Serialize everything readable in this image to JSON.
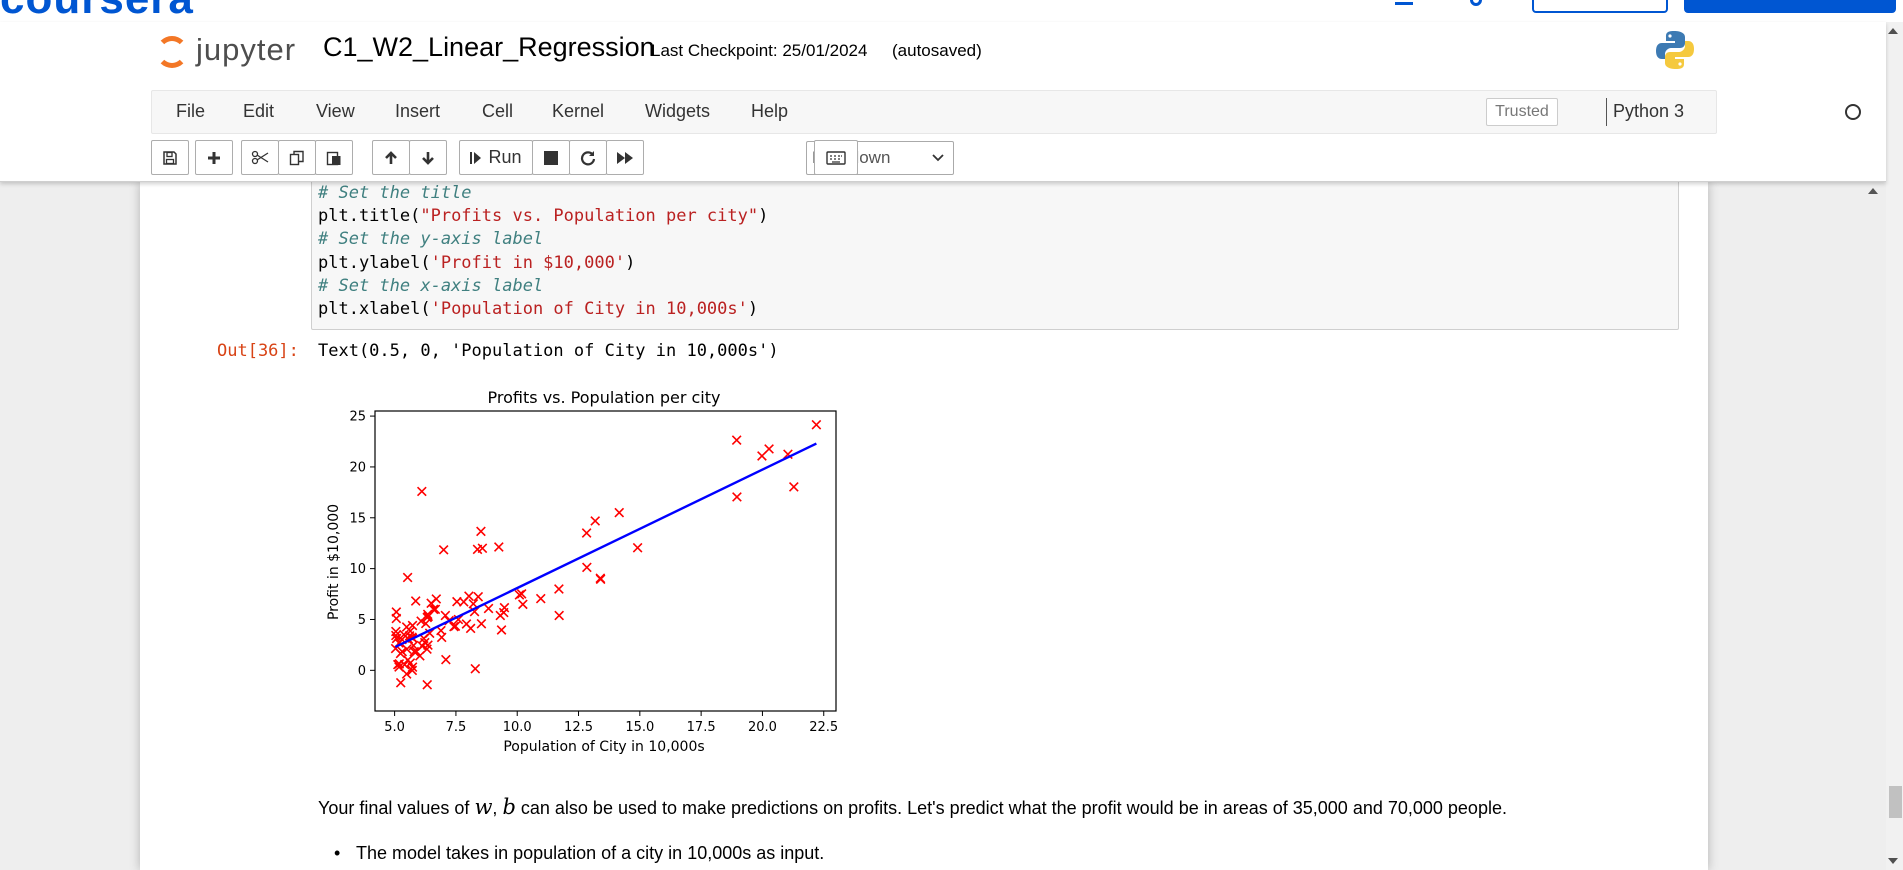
{
  "header": {
    "brand_text": "coursera",
    "logo_text": "jupyter",
    "notebook_title": "C1_W2_Linear_Regression",
    "checkpoint": "Last Checkpoint: 25/01/2024",
    "autosave_status": "(autosaved)"
  },
  "menu": [
    "File",
    "Edit",
    "View",
    "Insert",
    "Cell",
    "Kernel",
    "Widgets",
    "Help"
  ],
  "status": {
    "trusted": "Trusted",
    "kernel": "Python 3"
  },
  "toolbar": {
    "icons": [
      "save-icon",
      "plus-icon",
      "cut-icon",
      "copy-icon",
      "paste-icon",
      "arrow-up-icon",
      "arrow-down-icon",
      "run-icon",
      "stop-icon",
      "restart-icon",
      "fast-forward-icon",
      "keyboard-icon"
    ],
    "run_label": "Run",
    "cell_type": "Markdown"
  },
  "code_cell": {
    "lines": [
      "# Set the title",
      "plt.title(",
      "\"Profits vs. Population per city\"",
      ")",
      "# Set the y-axis label",
      "plt.ylabel(",
      "'Profit in $10,000'",
      ")",
      "# Set the x-axis label",
      "plt.xlabel(",
      "'Population of City in 10,000s'",
      ")"
    ]
  },
  "output": {
    "prompt": "Out[36]:",
    "text": "Text(0.5, 0, 'Population of City in 10,000s')"
  },
  "chart_data": {
    "type": "scatter",
    "title": "Profits vs. Population per city",
    "xlabel": "Population of City in 10,000s",
    "ylabel": "Profit in $10,000",
    "xlim": [
      4.2,
      23.0
    ],
    "ylim": [
      -4.0,
      25.5
    ],
    "xticks": [
      "5.0",
      "7.5",
      "10.0",
      "12.5",
      "15.0",
      "17.5",
      "20.0",
      "22.5"
    ],
    "yticks": [
      "0",
      "5",
      "10",
      "15",
      "20",
      "25"
    ],
    "grid": false,
    "colors": {
      "points": "#ff0000",
      "fit_line": "#0000ff"
    },
    "series": [
      {
        "kind": "scatter-x-marker",
        "x": [
          6.11,
          5.53,
          8.52,
          7.0,
          5.86,
          8.38,
          7.48,
          8.58,
          6.49,
          5.05,
          5.71,
          14.16,
          5.73,
          8.41,
          5.64,
          5.38,
          6.37,
          5.13,
          6.43,
          7.07,
          6.19,
          20.27,
          5.49,
          6.33,
          5.56,
          18.95,
          12.83,
          10.96,
          13.18,
          22.2,
          5.25,
          6.59,
          9.25,
          5.89,
          8.21,
          7.93,
          8.1,
          5.61,
          12.84,
          6.35,
          5.41,
          6.89,
          11.71,
          5.77,
          7.82,
          7.09,
          5.07,
          5.8,
          11.7,
          5.54,
          7.54,
          5.31,
          7.42,
          7.6,
          6.03,
          6.33,
          6.36,
          6.27,
          5.64,
          9.31,
          9.45,
          8.83,
          5.18,
          21.28,
          14.91,
          18.96,
          7.22,
          5.07,
          5.3,
          8.29,
          5.73,
          5.19,
          6.92,
          5.24,
          13.39,
          5.05,
          8.03,
          5.04,
          19.98,
          21.04,
          8.26,
          6.23,
          6.7,
          9.48,
          10.23,
          10.18,
          5.5,
          5.08,
          10.09,
          5.49,
          13.4,
          6.13,
          5.72,
          6.32,
          8.54,
          5.18,
          6.66,
          5.73,
          9.36,
          6.08
        ],
        "y": [
          17.59,
          9.13,
          13.66,
          11.85,
          6.82,
          11.89,
          4.35,
          12.0,
          6.6,
          3.82,
          3.25,
          15.51,
          3.16,
          7.23,
          0.72,
          3.51,
          5.3,
          0.56,
          3.65,
          5.39,
          3.14,
          21.77,
          4.26,
          5.19,
          3.08,
          22.64,
          13.5,
          7.05,
          14.69,
          24.15,
          -1.22,
          5.99,
          12.13,
          1.85,
          6.54,
          4.56,
          4.12,
          3.39,
          10.12,
          5.5,
          0.56,
          3.91,
          5.39,
          2.44,
          6.73,
          1.05,
          5.1,
          1.84,
          8.0,
          1.02,
          6.75,
          1.84,
          4.29,
          5.0,
          1.42,
          -1.42,
          2.48,
          4.6,
          3.86,
          5.39,
          5.68,
          6.08,
          2.68,
          18.04,
          12.05,
          17.05,
          4.89,
          5.74,
          3.03,
          0.15,
          0.31,
          0.63,
          3.24,
          1.65,
          9.05,
          3.42,
          7.3,
          2.14,
          21.08,
          21.25,
          5.77,
          2.73,
          7.02,
          6.16,
          6.49,
          7.52,
          2.08,
          3.13,
          7.42,
          -0.36,
          8.96,
          2.38,
          -0.01,
          2.08,
          4.58,
          0.32,
          6.0,
          4.41,
          3.97,
          4.84
        ]
      },
      {
        "kind": "fit-line",
        "x": [
          5.03,
          22.2
        ],
        "y": [
          2.3,
          22.3
        ]
      }
    ]
  }
}
